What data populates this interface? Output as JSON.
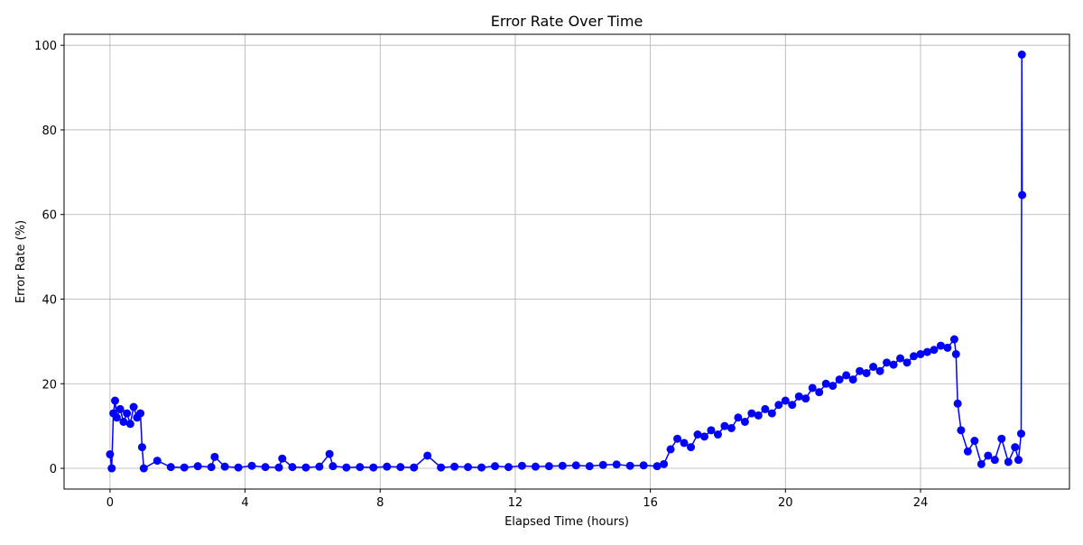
{
  "chart_data": {
    "type": "line",
    "title": "Error Rate Over Time",
    "x_label": "Elapsed Time (hours)",
    "y_label": "Error Rate (%)",
    "x": [
      0,
      0.05,
      0.1,
      0.15,
      0.2,
      0.3,
      0.4,
      0.5,
      0.6,
      0.7,
      0.8,
      0.9,
      0.95,
      1.0,
      1.4,
      1.8,
      2.2,
      2.6,
      3.0,
      3.1,
      3.4,
      3.8,
      4.2,
      4.6,
      5.0,
      5.1,
      5.4,
      5.8,
      6.2,
      6.5,
      6.6,
      7.0,
      7.4,
      7.8,
      8.2,
      8.6,
      9.0,
      9.4,
      9.8,
      10.2,
      10.6,
      11.0,
      11.4,
      11.8,
      12.2,
      12.6,
      13.0,
      13.4,
      13.8,
      14.2,
      14.6,
      15.0,
      15.4,
      15.8,
      16.2,
      16.4,
      16.6,
      16.8,
      17.0,
      17.2,
      17.4,
      17.6,
      17.8,
      18.0,
      18.2,
      18.4,
      18.6,
      18.8,
      19.0,
      19.2,
      19.4,
      19.6,
      19.8,
      20.0,
      20.2,
      20.4,
      20.6,
      20.8,
      21.0,
      21.2,
      21.4,
      21.6,
      21.8,
      22.0,
      22.2,
      22.4,
      22.6,
      22.8,
      23.0,
      23.2,
      23.4,
      23.6,
      23.8,
      24.0,
      24.2,
      24.4,
      24.6,
      24.8,
      25.0,
      25.05,
      25.1,
      25.2,
      25.4,
      25.6,
      25.8,
      26.0,
      26.2,
      26.4,
      26.6,
      26.8,
      26.9,
      26.98,
      27.0,
      27.01
    ],
    "series": [
      {
        "name": "Error Rate",
        "color": "#0000ff",
        "values": [
          3.3,
          0,
          13,
          16,
          12,
          14,
          11,
          13,
          10.5,
          14.5,
          12,
          13,
          5,
          0,
          1.8,
          0.3,
          0.2,
          0.5,
          0.3,
          2.7,
          0.4,
          0.2,
          0.6,
          0.3,
          0.2,
          2.3,
          0.3,
          0.2,
          0.4,
          3.4,
          0.5,
          0.2,
          0.3,
          0.2,
          0.4,
          0.3,
          0.2,
          3.0,
          0.2,
          0.4,
          0.3,
          0.2,
          0.5,
          0.3,
          0.6,
          0.4,
          0.5,
          0.6,
          0.7,
          0.5,
          0.8,
          0.9,
          0.6,
          0.7,
          0.5,
          1.0,
          4.5,
          7,
          6,
          5,
          8,
          7.5,
          9,
          8,
          10,
          9.5,
          12,
          11,
          13,
          12.5,
          14,
          13,
          15,
          16,
          15,
          17,
          16.5,
          19,
          18,
          20,
          19.5,
          21,
          22,
          21,
          23,
          22.5,
          24,
          23,
          25,
          24.5,
          26,
          25,
          26.5,
          27,
          27.5,
          28,
          29,
          28.5,
          30.5,
          27,
          15.3,
          9,
          4,
          6.5,
          1,
          3,
          2,
          7,
          1.5,
          5,
          2,
          8.2,
          97.8,
          64.6
        ]
      }
    ],
    "xlim": [
      -1.36,
      28.41
    ],
    "ylim": [
      -4.9,
      102.6
    ],
    "xticks": [
      0,
      4,
      8,
      12,
      16,
      20,
      24
    ],
    "yticks": [
      0,
      20,
      40,
      60,
      80,
      100
    ],
    "grid": true
  }
}
